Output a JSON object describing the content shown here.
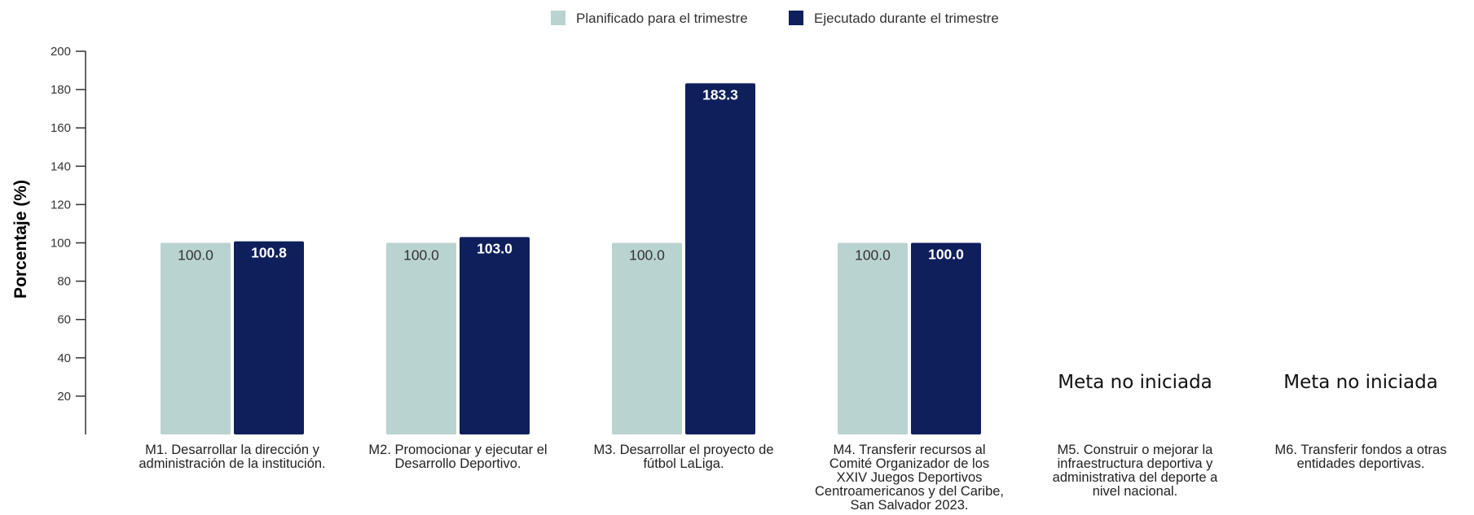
{
  "chart_data": {
    "type": "bar",
    "ylabel": "Porcentaje (%)",
    "xlabel": "",
    "ylim": [
      0,
      200
    ],
    "yticks": [
      20,
      40,
      60,
      80,
      100,
      120,
      140,
      160,
      180,
      200
    ],
    "legend_position": "top-center",
    "categories": [
      "M1. Desarrollar la dirección y administración de la institución.",
      "M2. Promocionar y ejecutar el Desarrollo Deportivo.",
      "M3. Desarrollar el proyecto de fútbol LaLiga.",
      "M4. Transferir recursos al Comité Organizador de los XXIV Juegos Deportivos Centroamericanos y del Caribe, San Salvador 2023.",
      "M5. Construir o mejorar la infraestructura deportiva y administrativa del deporte a nivel nacional.",
      "M6. Transferir fondos a otras entidades deportivas."
    ],
    "category_lines": [
      [
        "M1. Desarrollar la dirección y",
        "administración de la institución."
      ],
      [
        "M2. Promocionar y ejecutar el",
        "Desarrollo Deportivo."
      ],
      [
        "M3. Desarrollar el proyecto de",
        "fútbol LaLiga."
      ],
      [
        "M4. Transferir recursos al",
        "Comité Organizador de los",
        "XXIV Juegos Deportivos",
        "Centroamericanos y del Caribe,",
        "San Salvador 2023."
      ],
      [
        "M5. Construir o mejorar la",
        "infraestructura deportiva y",
        "administrativa del deporte a",
        "nivel nacional."
      ],
      [
        "M6. Transferir fondos a otras",
        "entidades deportivas."
      ]
    ],
    "series": [
      {
        "name": "Planificado para el trimestre",
        "color": "#b9d3d1",
        "values": [
          100.0,
          100.0,
          100.0,
          100.0,
          null,
          null
        ],
        "labels": [
          "100.0",
          "100.0",
          "100.0",
          "100.0",
          null,
          null
        ]
      },
      {
        "name": "Ejecutado durante el trimestre",
        "color": "#0f1f5c",
        "values": [
          100.8,
          103.0,
          183.3,
          100.0,
          null,
          null
        ],
        "labels": [
          "100.8",
          "103.0",
          "183.3",
          "100.0",
          null,
          null
        ]
      }
    ],
    "annotations": [
      {
        "category_index": 4,
        "text": "Meta no iniciada"
      },
      {
        "category_index": 5,
        "text": "Meta no iniciada"
      }
    ]
  }
}
